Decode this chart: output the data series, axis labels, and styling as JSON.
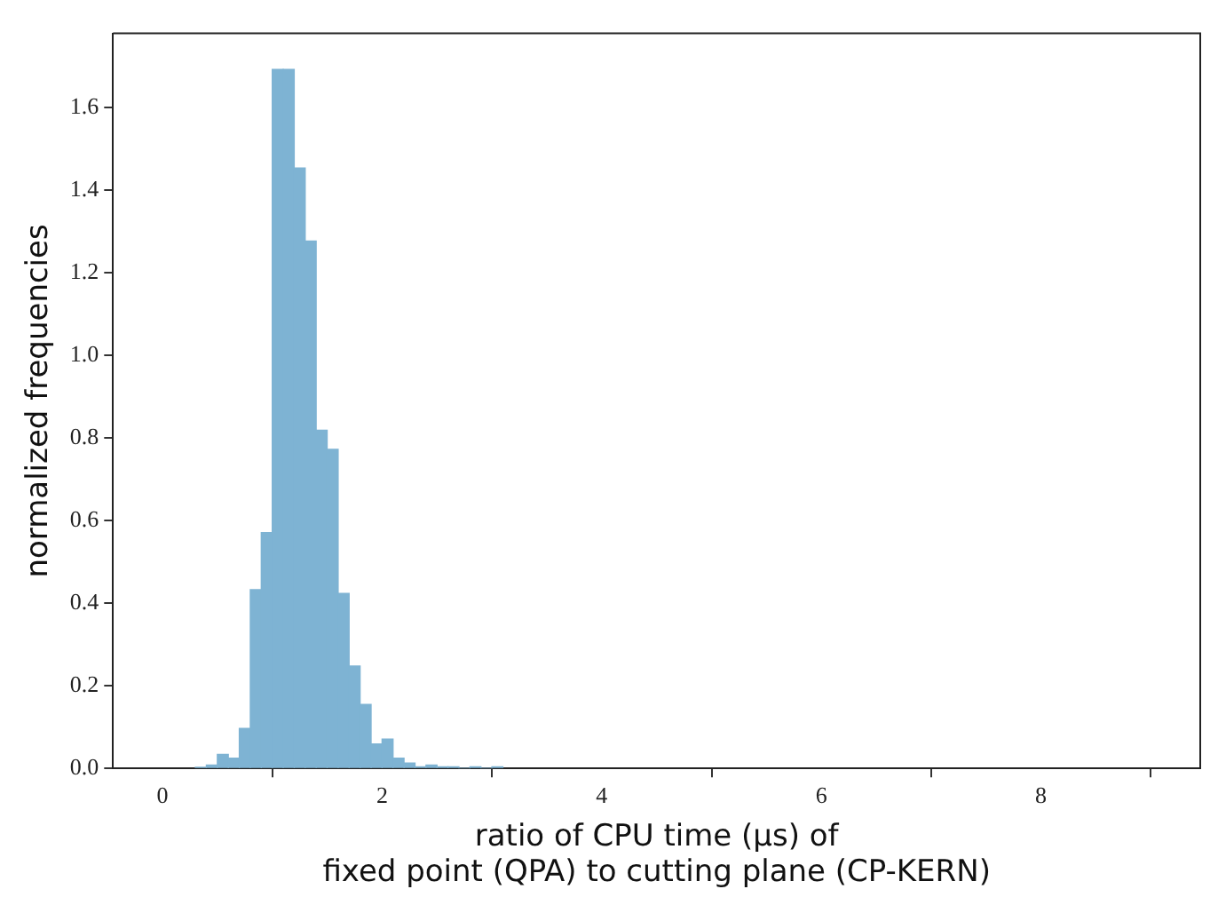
{
  "chart_data": {
    "type": "histogram",
    "xlabel": "ratio of CPU time (μs) of\nfixed point (QPA) to cutting plane (CP-KERN)",
    "ylabel": "normalized frequencies",
    "bins": [
      0.3,
      0.4,
      0.5,
      0.6,
      0.7,
      0.8,
      0.9,
      1.0,
      1.1,
      1.2,
      1.3,
      1.4,
      1.5,
      1.6,
      1.7,
      1.8,
      1.9,
      2.0,
      2.1,
      2.2,
      2.3,
      2.4,
      2.5,
      2.6,
      2.7,
      2.8,
      2.9,
      3.0,
      3.1
    ],
    "values": [
      0.003,
      0.008,
      0.034,
      0.025,
      0.097,
      0.433,
      0.571,
      1.693,
      1.693,
      1.454,
      1.277,
      0.819,
      0.773,
      0.424,
      0.248,
      0.155,
      0.059,
      0.071,
      0.025,
      0.013,
      0.004,
      0.008,
      0.004,
      0.004,
      0,
      0.004,
      0,
      0.004
    ],
    "color": "#7eb3d3",
    "xlim": [
      -0.45,
      9.45
    ],
    "xticks": [
      0,
      2,
      4,
      6,
      8
    ],
    "ylim": [
      0,
      1.78
    ],
    "yticks": [
      {
        "value": 0,
        "label": "0.0"
      },
      {
        "value": 0.2,
        "label": "0.2"
      },
      {
        "value": 0.4,
        "label": "0.4"
      },
      {
        "value": 0.6,
        "label": "0.6"
      },
      {
        "value": 0.8,
        "label": "0.8"
      },
      {
        "value": 1,
        "label": "1.0"
      },
      {
        "value": 1.2,
        "label": "1.2"
      },
      {
        "value": 1.4,
        "label": "1.4"
      },
      {
        "value": 1.6,
        "label": "1.6"
      }
    ],
    "grid": false,
    "legend": false
  }
}
